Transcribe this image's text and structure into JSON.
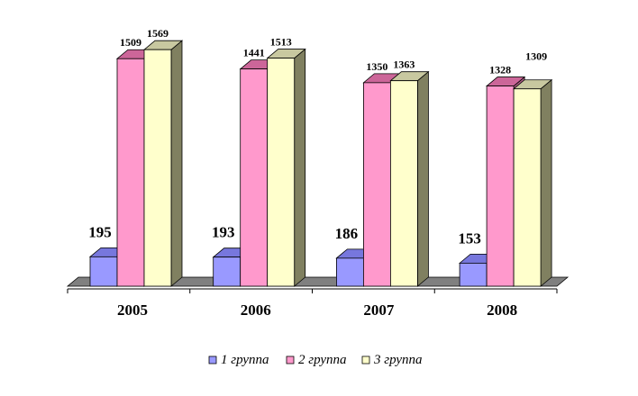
{
  "chart_data": {
    "type": "bar",
    "categories": [
      "2005",
      "2006",
      "2007",
      "2008"
    ],
    "series": [
      {
        "name": "1 группа",
        "values": [
          195,
          193,
          186,
          153
        ],
        "color": "#9999ff",
        "top": "#7777dd",
        "side": "#5a5aa8"
      },
      {
        "name": "2 группа",
        "values": [
          1509,
          1441,
          1350,
          1328
        ],
        "color": "#ff99cc",
        "top": "#cc6699",
        "side": "#a85a80"
      },
      {
        "name": "3 группа",
        "values": [
          1569,
          1513,
          1363,
          1309
        ],
        "color": "#ffffcc",
        "top": "#c8c8a0",
        "side": "#808060"
      }
    ],
    "floor_color": "#808080",
    "grid": false,
    "legend_position": "bottom"
  }
}
